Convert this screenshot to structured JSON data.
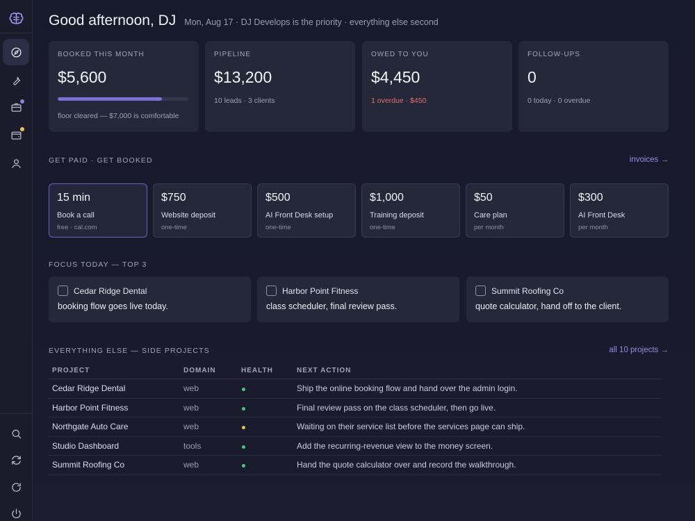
{
  "sidebar": {
    "items": [
      {
        "icon": "brain-logo-icon",
        "active": false
      },
      {
        "icon": "compass-icon",
        "active": true
      },
      {
        "icon": "wrench-icon",
        "active": false
      },
      {
        "icon": "briefcase-icon",
        "active": false,
        "badge": "#8f7ef0"
      },
      {
        "icon": "wallet-icon",
        "active": false,
        "badge": "#e8c64a"
      },
      {
        "icon": "user-icon",
        "active": false
      }
    ],
    "bottom": [
      {
        "icon": "search-icon"
      },
      {
        "icon": "sync-icon"
      },
      {
        "icon": "refresh-icon"
      },
      {
        "icon": "power-icon"
      }
    ]
  },
  "header": {
    "greeting": "Good afternoon, DJ",
    "subline": "Mon, Aug 17 · DJ Develops is the priority · everything else second"
  },
  "stats": [
    {
      "label": "BOOKED THIS MONTH",
      "value": "$5,600",
      "progress": 0.8,
      "sub": "floor cleared — $7,000 is comfortable"
    },
    {
      "label": "PIPELINE",
      "value": "$13,200",
      "sub": "10 leads · 3 clients"
    },
    {
      "label": "OWED TO YOU",
      "value": "$4,450",
      "sub": "1 overdue · $450",
      "sub_color": "#e0706a"
    },
    {
      "label": "FOLLOW-UPS",
      "value": "0",
      "sub": "0 today · 0 overdue"
    }
  ],
  "offers_section": {
    "title": "GET PAID · GET BOOKED",
    "link": "invoices →"
  },
  "offers": [
    {
      "price": "15 min",
      "name": "Book a call",
      "note": "free · cal.com",
      "highlight": true
    },
    {
      "price": "$750",
      "name": "Website deposit",
      "note": "one-time"
    },
    {
      "price": "$500",
      "name": "AI Front Desk setup",
      "note": "one-time"
    },
    {
      "price": "$1,000",
      "name": "Training deposit",
      "note": "one-time"
    },
    {
      "price": "$50",
      "name": "Care plan",
      "note": "per month"
    },
    {
      "price": "$300",
      "name": "AI Front Desk",
      "note": "per month"
    }
  ],
  "focus_section": {
    "title": "FOCUS TODAY — TOP 3"
  },
  "focus": [
    {
      "client": "Cedar Ridge Dental",
      "task": "booking flow goes live today."
    },
    {
      "client": "Harbor Point Fitness",
      "task": "class scheduler, final review pass."
    },
    {
      "client": "Summit Roofing Co",
      "task": "quote calculator, hand off to the client."
    }
  ],
  "projects_section": {
    "title": "EVERYTHING ELSE — SIDE PROJECTS",
    "link": "all 10 projects →"
  },
  "table": {
    "columns": [
      "PROJECT",
      "DOMAIN",
      "HEALTH",
      "NEXT ACTION"
    ],
    "rows": [
      {
        "project": "Cedar Ridge Dental",
        "domain": "web",
        "health": "#4cc77a",
        "action": "Ship the online booking flow and hand over the admin login."
      },
      {
        "project": "Harbor Point Fitness",
        "domain": "web",
        "health": "#4cc77a",
        "action": "Final review pass on the class scheduler, then go live."
      },
      {
        "project": "Northgate Auto Care",
        "domain": "web",
        "health": "#e6c04c",
        "action": "Waiting on their service list before the services page can ship."
      },
      {
        "project": "Studio Dashboard",
        "domain": "tools",
        "health": "#4cc77a",
        "action": "Add the recurring-revenue view to the money screen."
      },
      {
        "project": "Summit Roofing Co",
        "domain": "web",
        "health": "#4cc77a",
        "action": "Hand the quote calculator over and record the walkthrough."
      }
    ]
  }
}
